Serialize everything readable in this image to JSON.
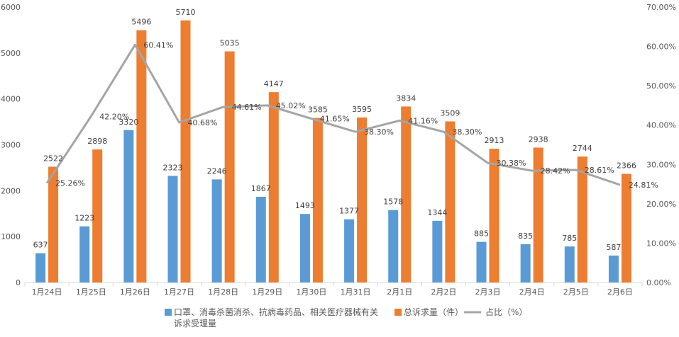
{
  "chart_data": {
    "type": "bar",
    "categories": [
      "1月24日",
      "1月25日",
      "1月26日",
      "1月27日",
      "1月28日",
      "1月29日",
      "1月30日",
      "1月31日",
      "2月1日",
      "2月2日",
      "2月3日",
      "2月4日",
      "2月5日",
      "2月6日"
    ],
    "series": [
      {
        "name": "口罩、消毒杀菌消杀、抗病毒药品、相关医疗器械有关诉求受理量",
        "legend_lines": [
          "口罩、消毒杀菌消杀、抗病毒药品、相关医疗器械有关",
          "诉求受理量"
        ],
        "type": "bar",
        "axis": "left",
        "color": "#5B9BD5",
        "values": [
          637,
          1223,
          3320,
          2323,
          2246,
          1867,
          1493,
          1377,
          1578,
          1344,
          885,
          835,
          785,
          587
        ]
      },
      {
        "name": "总诉求量（件）",
        "type": "bar",
        "axis": "left",
        "color": "#ED7D31",
        "values": [
          2522,
          2898,
          5496,
          5710,
          5035,
          4147,
          3585,
          3595,
          3834,
          3509,
          2913,
          2938,
          2744,
          2366
        ]
      },
      {
        "name": "占比（%）",
        "type": "line",
        "axis": "right",
        "color": "#A5A5A5",
        "values": [
          25.26,
          42.2,
          60.41,
          40.68,
          44.61,
          45.02,
          41.65,
          38.3,
          41.16,
          38.3,
          30.38,
          28.42,
          28.61,
          24.81
        ]
      }
    ],
    "y_left": {
      "min": 0,
      "max": 6000,
      "step": 1000,
      "ticks": [
        "0",
        "1000",
        "2000",
        "3000",
        "4000",
        "5000",
        "6000"
      ]
    },
    "y_right": {
      "min": 0,
      "max": 70,
      "step": 10,
      "ticks": [
        "0.00%",
        "10.00%",
        "20.00%",
        "30.00%",
        "40.00%",
        "50.00%",
        "60.00%",
        "70.00%"
      ]
    },
    "bar_labels_a": [
      "637",
      "1223",
      "3320",
      "2323",
      "2246",
      "1867",
      "1493",
      "1377",
      "1578",
      "1344",
      "885",
      "835",
      "785",
      "587"
    ],
    "bar_labels_b": [
      "2522",
      "2898",
      "5496",
      "5710",
      "5035",
      "4147",
      "3585",
      "3595",
      "3834",
      "3509",
      "2913",
      "2938",
      "2744",
      "2366"
    ],
    "line_labels": [
      "25.26%",
      "42.20%",
      "60.41%",
      "40.68%",
      "44.61%",
      "45.02%",
      "41.65%",
      "38.30%",
      "41.16%",
      "38.30%",
      "30.38%",
      "28.42%",
      "28.61%",
      "24.81%"
    ],
    "grid": false,
    "legend_position": "bottom"
  }
}
